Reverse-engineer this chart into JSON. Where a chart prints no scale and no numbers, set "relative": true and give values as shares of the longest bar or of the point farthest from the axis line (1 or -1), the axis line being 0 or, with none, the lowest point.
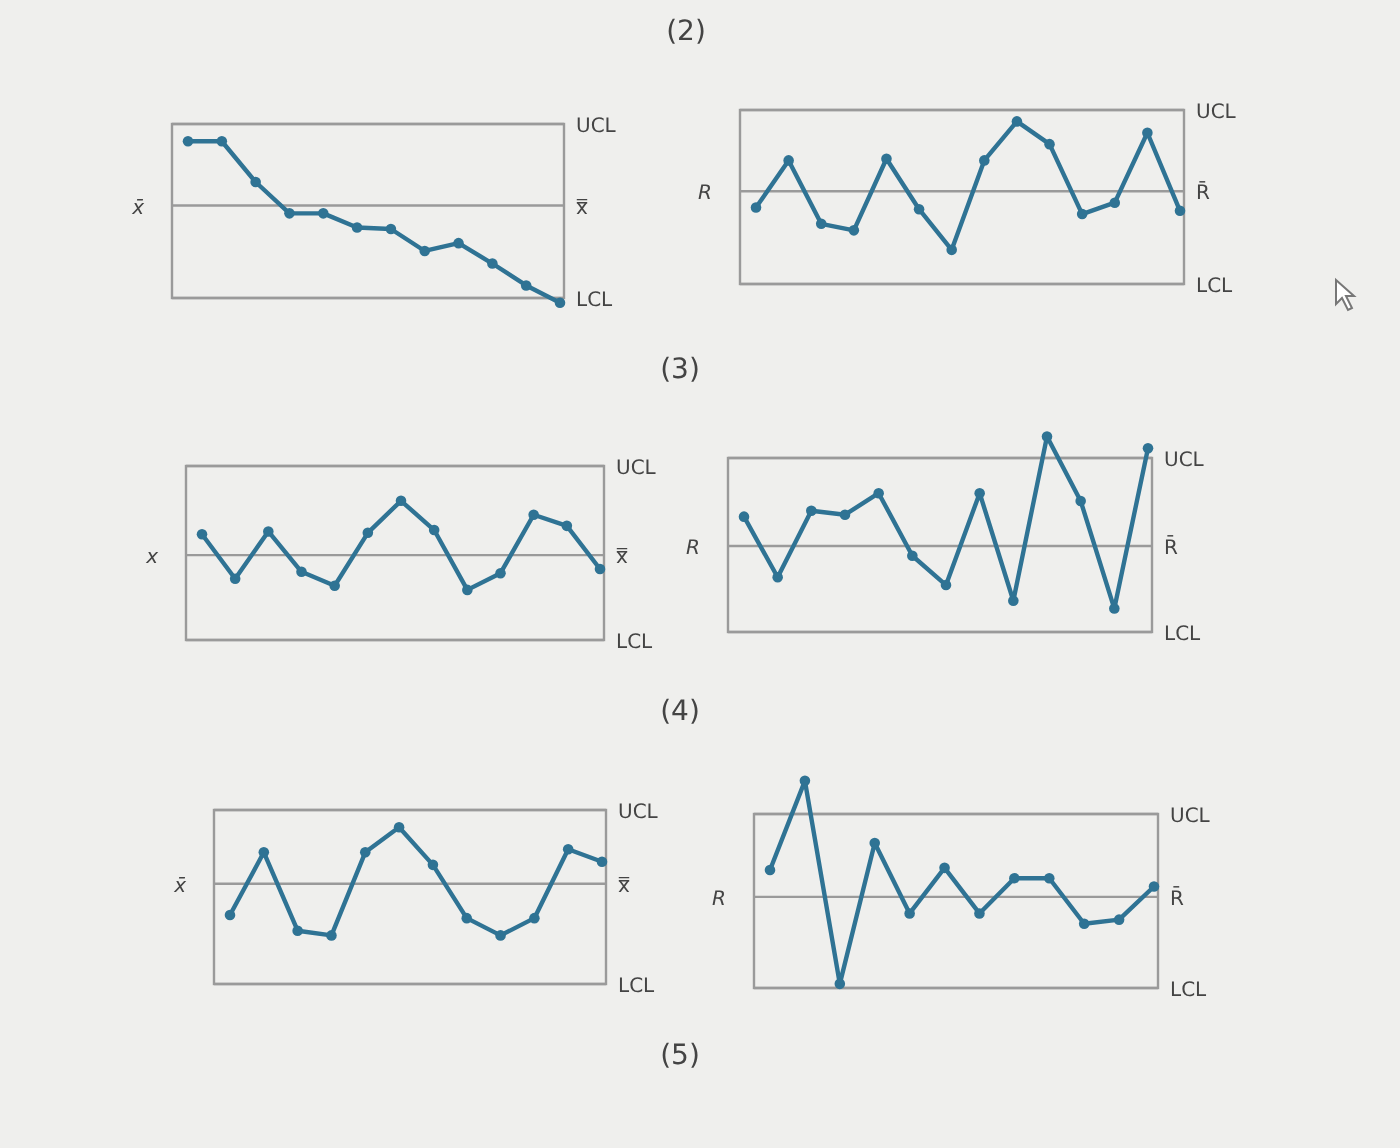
{
  "chart_data": [
    {
      "type": "line",
      "annotations": [
        "(3)"
      ],
      "ylabel": "x̄",
      "relative": true,
      "marker": "circle",
      "color": "#2f7394",
      "categories": [
        null,
        null,
        null,
        null,
        null,
        null,
        null,
        null,
        null,
        null,
        null,
        null
      ],
      "values": [
        1,
        1,
        0.74,
        0.54,
        0.54,
        0.45,
        0.44,
        0.3,
        0.35,
        0.22,
        0.08,
        -0.03
      ],
      "ref_lines": [
        {
          "axis": "y",
          "value": 1.11,
          "label": "UCL"
        },
        {
          "axis": "y",
          "value": 0.59,
          "label": "x̿"
        },
        {
          "axis": "y",
          "value": 0,
          "label": "LCL"
        }
      ]
    },
    {
      "type": "line",
      "title": "(2)",
      "ylabel": "R",
      "relative": true,
      "marker": "circle",
      "color": "#2f7394",
      "categories": [
        null,
        null,
        null,
        null,
        null,
        null,
        null,
        null,
        null,
        null,
        null,
        null,
        null,
        null
      ],
      "values": [
        0.47,
        0.76,
        0.37,
        0.33,
        0.77,
        0.46,
        0.21,
        0.76,
        1,
        0.86,
        0.43,
        0.5,
        0.93,
        0.45
      ],
      "ref_lines": [
        {
          "axis": "y",
          "value": 1.07,
          "label": "UCL"
        },
        {
          "axis": "y",
          "value": 0.57,
          "label": "R̄"
        },
        {
          "axis": "y",
          "value": 0,
          "label": "LCL"
        }
      ]
    },
    {
      "type": "line",
      "annotations": [
        "(4)"
      ],
      "ylabel": "x",
      "relative": true,
      "marker": "circle",
      "color": "#2f7394",
      "categories": [
        null,
        null,
        null,
        null,
        null,
        null,
        null,
        null,
        null,
        null,
        null,
        null,
        null
      ],
      "values": [
        0.76,
        0.44,
        0.78,
        0.49,
        0.39,
        0.77,
        1,
        0.79,
        0.36,
        0.48,
        0.9,
        0.82,
        0.51
      ],
      "ref_lines": [
        {
          "axis": "y",
          "value": 1.25,
          "label": "UCL"
        },
        {
          "axis": "y",
          "value": 0.61,
          "label": "x̿"
        },
        {
          "axis": "y",
          "value": 0,
          "label": "LCL"
        }
      ]
    },
    {
      "type": "line",
      "ylabel": "R",
      "relative": true,
      "marker": "circle",
      "color": "#2f7394",
      "categories": [
        null,
        null,
        null,
        null,
        null,
        null,
        null,
        null,
        null,
        null,
        null,
        null,
        null
      ],
      "values": [
        0.59,
        0.28,
        0.62,
        0.6,
        0.71,
        0.39,
        0.24,
        0.71,
        0.16,
        1,
        0.67,
        0.12,
        0.94
      ],
      "ref_lines": [
        {
          "axis": "y",
          "value": 0.89,
          "label": "UCL"
        },
        {
          "axis": "y",
          "value": 0.44,
          "label": "R̄"
        },
        {
          "axis": "y",
          "value": 0,
          "label": "LCL"
        }
      ]
    },
    {
      "type": "line",
      "annotations": [
        "(5)"
      ],
      "ylabel": "x̄",
      "relative": true,
      "marker": "circle",
      "color": "#2f7394",
      "categories": [
        null,
        null,
        null,
        null,
        null,
        null,
        null,
        null,
        null,
        null,
        null,
        null
      ],
      "values": [
        0.44,
        0.84,
        0.34,
        0.31,
        0.84,
        1,
        0.76,
        0.42,
        0.31,
        0.42,
        0.86,
        0.78
      ],
      "ref_lines": [
        {
          "axis": "y",
          "value": 1.11,
          "label": "UCL"
        },
        {
          "axis": "y",
          "value": 0.64,
          "label": "x̿"
        },
        {
          "axis": "y",
          "value": 0,
          "label": "LCL"
        }
      ]
    },
    {
      "type": "line",
      "ylabel": "R",
      "relative": true,
      "marker": "circle",
      "color": "#2f7394",
      "categories": [
        null,
        null,
        null,
        null,
        null,
        null,
        null,
        null,
        null,
        null,
        null,
        null
      ],
      "values": [
        0.57,
        1,
        0.02,
        0.7,
        0.36,
        0.58,
        0.36,
        0.53,
        0.53,
        0.31,
        0.33,
        0.49
      ],
      "ref_lines": [
        {
          "axis": "y",
          "value": 0.84,
          "label": "UCL"
        },
        {
          "axis": "y",
          "value": 0.44,
          "label": "R̄"
        },
        {
          "axis": "y",
          "value": 0,
          "label": "LCL"
        }
      ]
    }
  ]
}
